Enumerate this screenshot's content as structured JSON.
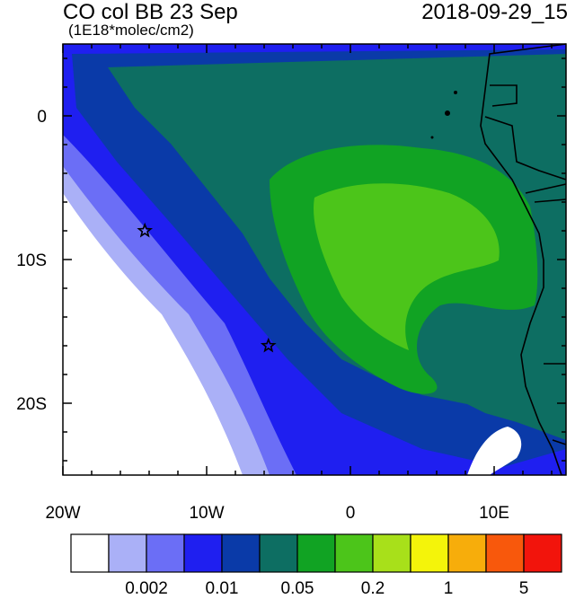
{
  "header": {
    "title": "CO col BB 23 Sep",
    "units": "(1E18*molec/cm2)",
    "timestamp": "2018-09-29_15"
  },
  "axes": {
    "x_ticks": [
      {
        "value": -20,
        "label": "20W"
      },
      {
        "value": -10,
        "label": "10W"
      },
      {
        "value": 0,
        "label": "0"
      },
      {
        "value": 10,
        "label": "10E"
      }
    ],
    "y_ticks": [
      {
        "value": 0,
        "label": "0"
      },
      {
        "value": -10,
        "label": "10S"
      },
      {
        "value": -20,
        "label": "20S"
      }
    ],
    "lon_range": [
      -20,
      15
    ],
    "lat_range": [
      -25,
      5
    ]
  },
  "markers": [
    {
      "name": "star-marker-1",
      "lon": -14.3,
      "lat": -8.0
    },
    {
      "name": "star-marker-2",
      "lon": -5.7,
      "lat": -16.0
    }
  ],
  "colorbar": {
    "colors": [
      "#ffffff",
      "#aab0f7",
      "#6b6ef6",
      "#1f1ff0",
      "#0a3aa8",
      "#0d6e62",
      "#11a323",
      "#4cc51a",
      "#a8e01a",
      "#f4f40a",
      "#f7ad0b",
      "#f8580c",
      "#f2140c"
    ],
    "labels": [
      {
        "text": "0.002",
        "after_index": 2
      },
      {
        "text": "0.01",
        "after_index": 4
      },
      {
        "text": "0.05",
        "after_index": 6
      },
      {
        "text": "0.2",
        "after_index": 8
      },
      {
        "text": "1",
        "after_index": 10
      },
      {
        "text": "5",
        "after_index": 12
      }
    ]
  }
}
